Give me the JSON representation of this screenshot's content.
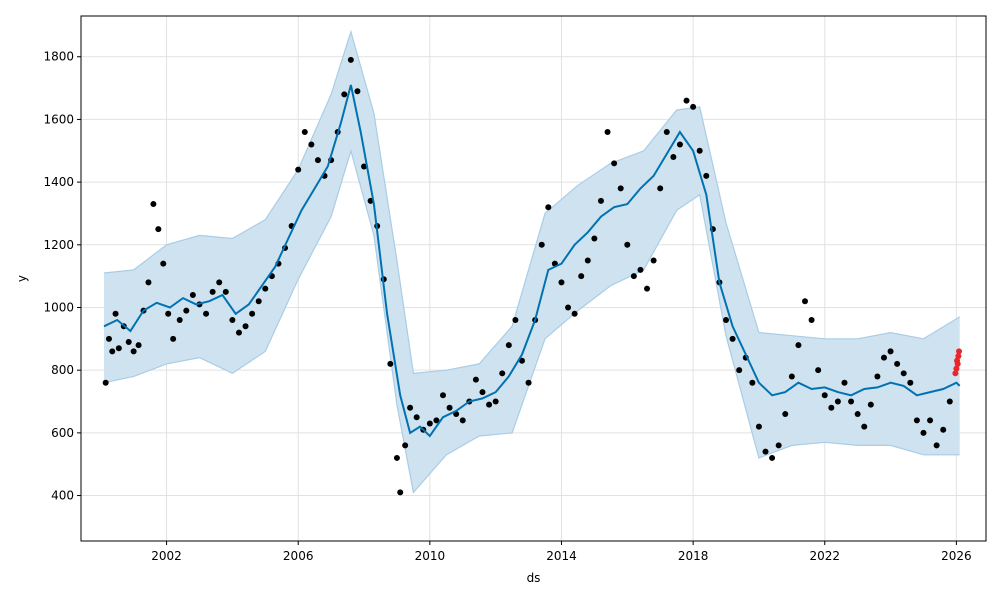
{
  "chart_data": {
    "type": "scatter",
    "title": "",
    "xlabel": "ds",
    "ylabel": "y",
    "xlim": [
      1999.4,
      2026.9
    ],
    "ylim": [
      255,
      1930
    ],
    "x_ticks": [
      2002,
      2006,
      2010,
      2014,
      2018,
      2022,
      2026
    ],
    "y_ticks": [
      400,
      600,
      800,
      1000,
      1200,
      1400,
      1600,
      1800
    ],
    "grid": true,
    "legend": "none",
    "colors": {
      "observed": "#000000",
      "recent": "#e8262b",
      "forecast": "#0072b2",
      "interval": "#cfe2f0",
      "interval_edge": "#a9cde6",
      "grid": "#e2e2e2"
    },
    "series": [
      {
        "role": "observed",
        "points": [
          [
            2000.15,
            760
          ],
          [
            2000.25,
            900
          ],
          [
            2000.35,
            860
          ],
          [
            2000.45,
            980
          ],
          [
            2000.55,
            870
          ],
          [
            2000.7,
            940
          ],
          [
            2000.85,
            890
          ],
          [
            2001.0,
            860
          ],
          [
            2001.15,
            880
          ],
          [
            2001.3,
            990
          ],
          [
            2001.45,
            1080
          ],
          [
            2001.6,
            1330
          ],
          [
            2001.75,
            1250
          ],
          [
            2001.9,
            1140
          ],
          [
            2002.05,
            980
          ],
          [
            2002.2,
            900
          ],
          [
            2002.4,
            960
          ],
          [
            2002.6,
            990
          ],
          [
            2002.8,
            1040
          ],
          [
            2003.0,
            1010
          ],
          [
            2003.2,
            980
          ],
          [
            2003.4,
            1050
          ],
          [
            2003.6,
            1080
          ],
          [
            2003.8,
            1050
          ],
          [
            2004.0,
            960
          ],
          [
            2004.2,
            920
          ],
          [
            2004.4,
            940
          ],
          [
            2004.6,
            980
          ],
          [
            2004.8,
            1020
          ],
          [
            2005.0,
            1060
          ],
          [
            2005.2,
            1100
          ],
          [
            2005.4,
            1140
          ],
          [
            2005.6,
            1190
          ],
          [
            2005.8,
            1260
          ],
          [
            2006.0,
            1440
          ],
          [
            2006.2,
            1560
          ],
          [
            2006.4,
            1520
          ],
          [
            2006.6,
            1470
          ],
          [
            2006.8,
            1420
          ],
          [
            2007.0,
            1470
          ],
          [
            2007.2,
            1560
          ],
          [
            2007.4,
            1680
          ],
          [
            2007.6,
            1790
          ],
          [
            2007.8,
            1690
          ],
          [
            2008.0,
            1450
          ],
          [
            2008.2,
            1340
          ],
          [
            2008.4,
            1260
          ],
          [
            2008.6,
            1090
          ],
          [
            2008.8,
            820
          ],
          [
            2009.0,
            520
          ],
          [
            2009.1,
            410
          ],
          [
            2009.25,
            560
          ],
          [
            2009.4,
            680
          ],
          [
            2009.6,
            650
          ],
          [
            2009.8,
            610
          ],
          [
            2010.0,
            630
          ],
          [
            2010.2,
            640
          ],
          [
            2010.4,
            720
          ],
          [
            2010.6,
            680
          ],
          [
            2010.8,
            660
          ],
          [
            2011.0,
            640
          ],
          [
            2011.2,
            700
          ],
          [
            2011.4,
            770
          ],
          [
            2011.6,
            730
          ],
          [
            2011.8,
            690
          ],
          [
            2012.0,
            700
          ],
          [
            2012.2,
            790
          ],
          [
            2012.4,
            880
          ],
          [
            2012.6,
            960
          ],
          [
            2012.8,
            830
          ],
          [
            2013.0,
            760
          ],
          [
            2013.2,
            960
          ],
          [
            2013.4,
            1200
          ],
          [
            2013.6,
            1320
          ],
          [
            2013.8,
            1140
          ],
          [
            2014.0,
            1080
          ],
          [
            2014.2,
            1000
          ],
          [
            2014.4,
            980
          ],
          [
            2014.6,
            1100
          ],
          [
            2014.8,
            1150
          ],
          [
            2015.0,
            1220
          ],
          [
            2015.2,
            1340
          ],
          [
            2015.4,
            1560
          ],
          [
            2015.6,
            1460
          ],
          [
            2015.8,
            1380
          ],
          [
            2016.0,
            1200
          ],
          [
            2016.2,
            1100
          ],
          [
            2016.4,
            1120
          ],
          [
            2016.6,
            1060
          ],
          [
            2016.8,
            1150
          ],
          [
            2017.0,
            1380
          ],
          [
            2017.2,
            1560
          ],
          [
            2017.4,
            1480
          ],
          [
            2017.6,
            1520
          ],
          [
            2017.8,
            1660
          ],
          [
            2018.0,
            1640
          ],
          [
            2018.2,
            1500
          ],
          [
            2018.4,
            1420
          ],
          [
            2018.6,
            1250
          ],
          [
            2018.8,
            1080
          ],
          [
            2019.0,
            960
          ],
          [
            2019.2,
            900
          ],
          [
            2019.4,
            800
          ],
          [
            2019.6,
            840
          ],
          [
            2019.8,
            760
          ],
          [
            2020.0,
            620
          ],
          [
            2020.2,
            540
          ],
          [
            2020.4,
            520
          ],
          [
            2020.6,
            560
          ],
          [
            2020.8,
            660
          ],
          [
            2021.0,
            780
          ],
          [
            2021.2,
            880
          ],
          [
            2021.4,
            1020
          ],
          [
            2021.6,
            960
          ],
          [
            2021.8,
            800
          ],
          [
            2022.0,
            720
          ],
          [
            2022.2,
            680
          ],
          [
            2022.4,
            700
          ],
          [
            2022.6,
            760
          ],
          [
            2022.8,
            700
          ],
          [
            2023.0,
            660
          ],
          [
            2023.2,
            620
          ],
          [
            2023.4,
            690
          ],
          [
            2023.6,
            780
          ],
          [
            2023.8,
            840
          ],
          [
            2024.0,
            860
          ],
          [
            2024.2,
            820
          ],
          [
            2024.4,
            790
          ],
          [
            2024.6,
            760
          ],
          [
            2024.8,
            640
          ],
          [
            2025.0,
            600
          ],
          [
            2025.2,
            640
          ],
          [
            2025.4,
            560
          ],
          [
            2025.6,
            610
          ],
          [
            2025.8,
            700
          ]
        ]
      },
      {
        "role": "recent",
        "points": [
          [
            2025.97,
            790
          ],
          [
            2026.0,
            805
          ],
          [
            2026.02,
            830
          ],
          [
            2026.04,
            820
          ],
          [
            2026.06,
            845
          ],
          [
            2026.08,
            860
          ]
        ]
      },
      {
        "role": "forecast",
        "points": [
          [
            2000.1,
            940
          ],
          [
            2000.5,
            960
          ],
          [
            2000.9,
            925
          ],
          [
            2001.3,
            990
          ],
          [
            2001.7,
            1015
          ],
          [
            2002.1,
            1000
          ],
          [
            2002.5,
            1030
          ],
          [
            2002.9,
            1010
          ],
          [
            2003.3,
            1020
          ],
          [
            2003.7,
            1040
          ],
          [
            2004.1,
            980
          ],
          [
            2004.5,
            1010
          ],
          [
            2004.9,
            1070
          ],
          [
            2005.3,
            1130
          ],
          [
            2005.7,
            1220
          ],
          [
            2006.1,
            1310
          ],
          [
            2006.5,
            1380
          ],
          [
            2006.9,
            1450
          ],
          [
            2007.3,
            1590
          ],
          [
            2007.6,
            1710
          ],
          [
            2007.9,
            1560
          ],
          [
            2008.3,
            1330
          ],
          [
            2008.7,
            980
          ],
          [
            2009.1,
            720
          ],
          [
            2009.4,
            600
          ],
          [
            2009.7,
            620
          ],
          [
            2010.0,
            590
          ],
          [
            2010.4,
            650
          ],
          [
            2010.8,
            670
          ],
          [
            2011.2,
            700
          ],
          [
            2011.6,
            710
          ],
          [
            2012.0,
            730
          ],
          [
            2012.4,
            780
          ],
          [
            2012.8,
            850
          ],
          [
            2013.2,
            960
          ],
          [
            2013.6,
            1120
          ],
          [
            2014.0,
            1140
          ],
          [
            2014.4,
            1200
          ],
          [
            2014.8,
            1240
          ],
          [
            2015.2,
            1290
          ],
          [
            2015.6,
            1320
          ],
          [
            2016.0,
            1330
          ],
          [
            2016.4,
            1380
          ],
          [
            2016.8,
            1420
          ],
          [
            2017.2,
            1490
          ],
          [
            2017.6,
            1560
          ],
          [
            2018.0,
            1500
          ],
          [
            2018.4,
            1360
          ],
          [
            2018.8,
            1080
          ],
          [
            2019.2,
            940
          ],
          [
            2019.6,
            850
          ],
          [
            2020.0,
            760
          ],
          [
            2020.4,
            720
          ],
          [
            2020.8,
            730
          ],
          [
            2021.2,
            760
          ],
          [
            2021.6,
            740
          ],
          [
            2022.0,
            745
          ],
          [
            2022.4,
            730
          ],
          [
            2022.8,
            720
          ],
          [
            2023.2,
            740
          ],
          [
            2023.6,
            745
          ],
          [
            2024.0,
            760
          ],
          [
            2024.4,
            750
          ],
          [
            2024.8,
            720
          ],
          [
            2025.2,
            730
          ],
          [
            2025.6,
            740
          ],
          [
            2026.0,
            760
          ],
          [
            2026.1,
            750
          ]
        ]
      }
    ],
    "interval": {
      "x": [
        2000.1,
        2001.0,
        2002.0,
        2003.0,
        2004.0,
        2005.0,
        2006.0,
        2007.0,
        2007.6,
        2008.3,
        2009.0,
        2009.5,
        2010.5,
        2011.5,
        2012.5,
        2013.5,
        2014.5,
        2015.5,
        2016.5,
        2017.5,
        2018.2,
        2019.0,
        2020.0,
        2021.0,
        2022.0,
        2023.0,
        2024.0,
        2025.0,
        2026.1
      ],
      "upper": [
        1110,
        1120,
        1200,
        1230,
        1220,
        1280,
        1440,
        1680,
        1880,
        1620,
        1150,
        790,
        800,
        820,
        940,
        1300,
        1390,
        1460,
        1500,
        1630,
        1640,
        1270,
        920,
        910,
        900,
        900,
        920,
        900,
        970
      ],
      "lower": [
        760,
        780,
        820,
        840,
        790,
        860,
        1090,
        1290,
        1500,
        1230,
        690,
        410,
        530,
        590,
        600,
        900,
        990,
        1070,
        1120,
        1310,
        1360,
        910,
        520,
        560,
        570,
        560,
        560,
        530,
        530
      ]
    }
  }
}
